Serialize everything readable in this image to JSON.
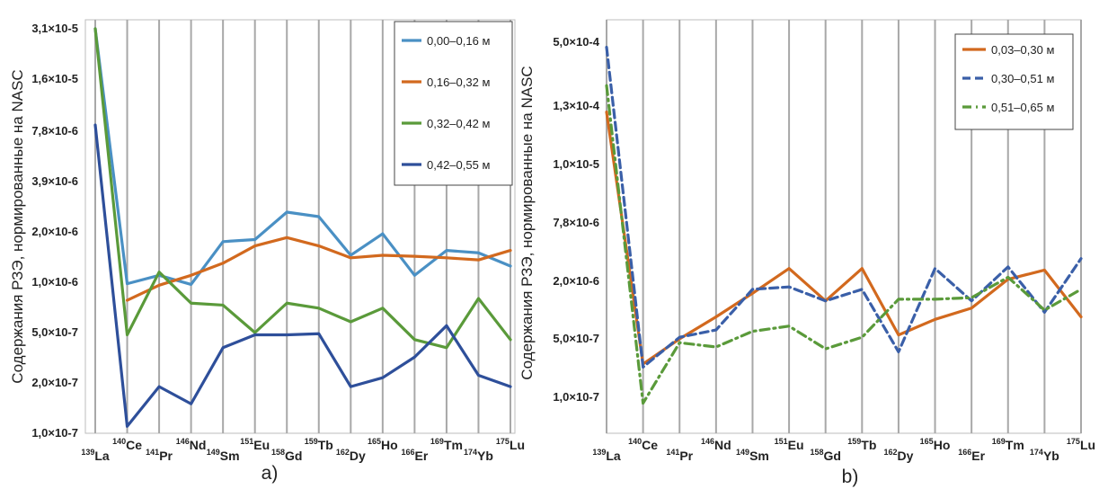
{
  "chart_data": [
    {
      "panel": "a)",
      "type": "line",
      "ylabel": "Содержания РЗЭ, нормированные на NASC",
      "y_scale": "categorical-log",
      "y_tick_labels": [
        "1,0×10-7",
        "2,0×10-7",
        "5,0×10-7",
        "1,0×10-6",
        "2,0×10-6",
        "3,9×10-6",
        "7,8×10-6",
        "1,6×10-5",
        "3,1×10-5"
      ],
      "categories": [
        {
          "mass": "139",
          "el": "La"
        },
        {
          "mass": "140",
          "el": "Ce"
        },
        {
          "mass": "141",
          "el": "Pr"
        },
        {
          "mass": "146",
          "el": "Nd"
        },
        {
          "mass": "149",
          "el": "Sm"
        },
        {
          "mass": "151",
          "el": "Eu"
        },
        {
          "mass": "158",
          "el": "Gd"
        },
        {
          "mass": "159",
          "el": "Tb"
        },
        {
          "mass": "162",
          "el": "Dy"
        },
        {
          "mass": "165",
          "el": "Ho"
        },
        {
          "mass": "166",
          "el": "Er"
        },
        {
          "mass": "169",
          "el": "Tm"
        },
        {
          "mass": "174",
          "el": "Yb"
        },
        {
          "mass": "175",
          "el": "Lu"
        }
      ],
      "grid": true,
      "legend_position": "top-right",
      "series": [
        {
          "name": "0,00–0,16 м",
          "color": "#4a90c4",
          "dash": "solid",
          "values": [
            31.0,
            0.98,
            1.1,
            0.97,
            1.75,
            1.8,
            2.6,
            2.45,
            1.45,
            1.95,
            1.1,
            1.55,
            1.5,
            1.25
          ]
        },
        {
          "name": "0,16–0,32 м",
          "color": "#d2691e",
          "dash": "solid",
          "values": [
            null,
            0.78,
            0.96,
            1.1,
            1.3,
            1.65,
            1.85,
            1.65,
            1.4,
            1.45,
            1.43,
            1.4,
            1.36,
            1.55
          ]
        },
        {
          "name": "0,32–0,42 м",
          "color": "#5a9a3a",
          "dash": "solid",
          "values": [
            31.0,
            0.48,
            1.15,
            0.75,
            0.73,
            0.5,
            0.75,
            0.7,
            0.58,
            0.7,
            0.44,
            0.38,
            0.8,
            0.44
          ]
        },
        {
          "name": "0,42–0,55 м",
          "color": "#2e4f9a",
          "dash": "solid",
          "values": [
            8.5,
            0.11,
            0.19,
            0.15,
            0.38,
            0.48,
            0.48,
            0.49,
            0.19,
            0.22,
            0.32,
            0.55,
            0.23,
            0.19
          ]
        }
      ]
    },
    {
      "panel": "b)",
      "type": "line",
      "ylabel": "Содержания РЗЭ, нормированные на NASC",
      "y_scale": "categorical-log",
      "y_tick_labels": [
        "1,0×10-7",
        "5,0×10-7",
        "2,0×10-6",
        "7,8×10-6",
        "1,0×10-5",
        "1,3×10-4",
        "5,0×10-4"
      ],
      "categories": [
        {
          "mass": "139",
          "el": "La"
        },
        {
          "mass": "140",
          "el": "Ce"
        },
        {
          "mass": "141",
          "el": "Pr"
        },
        {
          "mass": "146",
          "el": "Nd"
        },
        {
          "mass": "149",
          "el": "Sm"
        },
        {
          "mass": "151",
          "el": "Eu"
        },
        {
          "mass": "158",
          "el": "Gd"
        },
        {
          "mass": "159",
          "el": "Tb"
        },
        {
          "mass": "162",
          "el": "Dy"
        },
        {
          "mass": "165",
          "el": "Ho"
        },
        {
          "mass": "166",
          "el": "Er"
        },
        {
          "mass": "169",
          "el": "Tm"
        },
        {
          "mass": "174",
          "el": "Yb"
        },
        {
          "mass": "175",
          "el": "Lu"
        }
      ],
      "grid": true,
      "legend_position": "top-right",
      "series": [
        {
          "name": "0,03–0,30 м",
          "color": "#d2691e",
          "dash": "solid",
          "values": [
            100.0,
            0.25,
            0.5,
            0.85,
            1.5,
            2.7,
            1.25,
            2.7,
            0.55,
            0.8,
            1.05,
            2.1,
            2.6,
            0.85
          ]
        },
        {
          "name": "0,30–0,51 м",
          "color": "#3a5fa8",
          "dash": "dashed",
          "values": [
            450.0,
            0.23,
            0.52,
            0.62,
            1.65,
            1.75,
            1.25,
            1.65,
            0.35,
            2.7,
            1.25,
            2.8,
            0.95,
            3.4
          ]
        },
        {
          "name": "0,51–0,65 м",
          "color": "#5a9a3a",
          "dash": "dashdot",
          "values": [
            200.0,
            0.085,
            0.45,
            0.4,
            0.6,
            0.68,
            0.38,
            0.52,
            1.3,
            1.3,
            1.35,
            2.2,
            1.0,
            1.65
          ]
        }
      ]
    }
  ]
}
